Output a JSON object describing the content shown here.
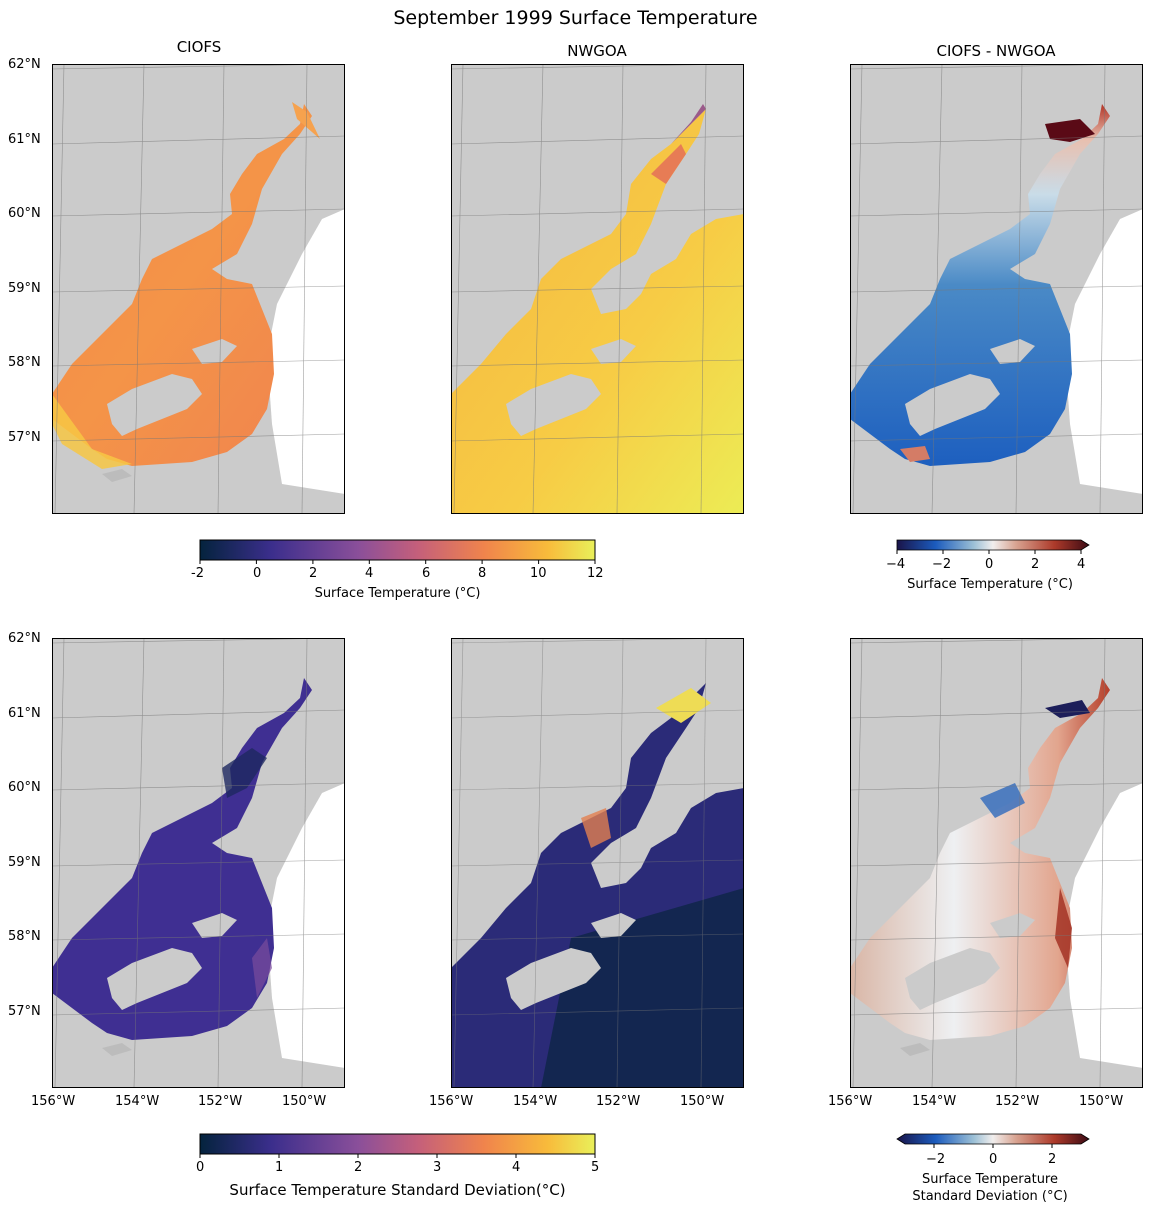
{
  "figure": {
    "title": "September 1999 Surface Temperature"
  },
  "panel_titles": [
    "CIOFS",
    "NWGOA",
    "CIOFS - NWGOA"
  ],
  "lat_labels": [
    "62°N",
    "61°N",
    "60°N",
    "59°N",
    "58°N",
    "57°N"
  ],
  "lon_labels": [
    "156°W",
    "154°W",
    "152°W",
    "150°W"
  ],
  "colorbars": {
    "temp": {
      "label": "Surface Temperature (°C)",
      "ticks": [
        "-2",
        "0",
        "2",
        "4",
        "6",
        "8",
        "10",
        "12"
      ],
      "range": [
        -2,
        12
      ]
    },
    "temp_diff": {
      "label": "Surface Temperature (°C)",
      "ticks": [
        "−4",
        "−2",
        "0",
        "2",
        "4"
      ],
      "range": [
        -4,
        4
      ]
    },
    "std": {
      "label": "Surface Temperature Standard Deviation(°C)",
      "ticks": [
        "0",
        "1",
        "2",
        "3",
        "4",
        "5"
      ],
      "range": [
        0,
        5
      ]
    },
    "std_diff": {
      "label_line1": "Surface Temperature",
      "label_line2": "Standard Deviation (°C)",
      "ticks": [
        "−2",
        "0",
        "2"
      ],
      "range": [
        -3,
        3
      ]
    }
  },
  "colors": {
    "land": "#cbcbcb",
    "ciofs_temp": "#f2894a",
    "nwgoa_temp": "#f6c23e",
    "std_dark": "#3a2a8a",
    "diff_blue": "#3f7fc0",
    "diff_red": "#b5452e"
  }
}
